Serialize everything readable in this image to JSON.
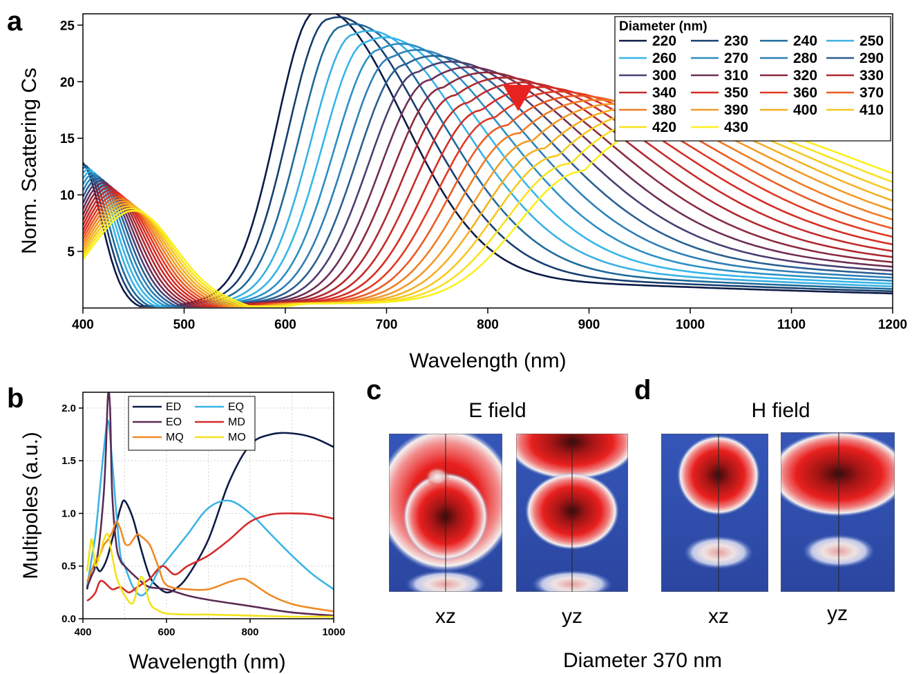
{
  "panel_labels": {
    "a": "a",
    "b": "b",
    "c": "c",
    "d": "d"
  },
  "chart_data": [
    {
      "type": "line",
      "panel": "a",
      "xlabel": "Wavelength (nm)",
      "ylabel": "Norm. Scattering Cs",
      "xlim": [
        400,
        1200
      ],
      "ylim": [
        0,
        26
      ],
      "xticks": [
        400,
        500,
        600,
        700,
        800,
        900,
        1000,
        1100,
        1200
      ],
      "yticks": [
        5,
        10,
        15,
        20,
        25
      ],
      "legend_title": "Diameter (nm)",
      "legend_position": "top-right",
      "series_names": [
        "220",
        "230",
        "240",
        "250",
        "260",
        "270",
        "280",
        "290",
        "300",
        "310",
        "320",
        "330",
        "340",
        "350",
        "360",
        "370",
        "380",
        "390",
        "400",
        "410",
        "420",
        "430"
      ],
      "series_colors": [
        "#0c1a45",
        "#173e6e",
        "#1e6a9a",
        "#39b0e2",
        "#35b6ea",
        "#2a8fc5",
        "#2c7fb8",
        "#2b5f91",
        "#4a3f72",
        "#6f2e55",
        "#8b2a3e",
        "#b0282f",
        "#c42b2b",
        "#d62c25",
        "#e23a22",
        "#ec5a22",
        "#f07d25",
        "#f39a25",
        "#f4b022",
        "#f6c81f",
        "#f8e21f",
        "#fbf01e"
      ],
      "series_summary": [
        {
          "name": "220",
          "peak_x": 630,
          "peak_y": 25.8,
          "ed_y": 12.5,
          "ed_x": 398,
          "valley_x": 470
        },
        {
          "name": "430",
          "peak_x": 895,
          "peak_y": 11.7,
          "ed_y": 8.2,
          "ed_x": 450,
          "valley_x": 580
        }
      ],
      "marker": {
        "shape": "triangle-down",
        "x": 830,
        "y": 18.5,
        "color": "#e8231f"
      }
    },
    {
      "type": "line",
      "panel": "b",
      "xlabel": "Wavelength (nm)",
      "ylabel": "Multipoles (a.u.)",
      "xlim": [
        400,
        1000
      ],
      "ylim": [
        0,
        2.15
      ],
      "xticks": [
        400,
        600,
        800,
        1000
      ],
      "yticks": [
        0.0,
        0.5,
        1.0,
        1.5,
        2.0
      ],
      "grid": true,
      "legend_position": "top-center",
      "series": [
        {
          "name": "ED",
          "color": "#0c1a45",
          "x": [
            410,
            420,
            430,
            440,
            450,
            460,
            470,
            480,
            490,
            500,
            520,
            540,
            560,
            580,
            600,
            620,
            650,
            700,
            750,
            800,
            850,
            900,
            950,
            1000
          ],
          "y": [
            0.28,
            0.45,
            0.5,
            0.45,
            0.5,
            0.6,
            0.75,
            0.9,
            1.05,
            1.12,
            0.95,
            0.65,
            0.4,
            0.3,
            0.25,
            0.28,
            0.4,
            0.75,
            1.3,
            1.65,
            1.75,
            1.76,
            1.72,
            1.63
          ]
        },
        {
          "name": "EQ",
          "color": "#3ab4e6",
          "x": [
            410,
            420,
            430,
            440,
            450,
            460,
            470,
            480,
            490,
            500,
            520,
            540,
            560,
            580,
            600,
            650,
            700,
            750,
            800,
            850,
            900,
            950,
            1000
          ],
          "y": [
            0.3,
            0.55,
            0.8,
            1.2,
            1.6,
            1.88,
            1.5,
            1.0,
            0.6,
            0.5,
            0.3,
            0.22,
            0.3,
            0.45,
            0.55,
            0.8,
            1.05,
            1.12,
            1.0,
            0.8,
            0.6,
            0.42,
            0.28
          ]
        },
        {
          "name": "EO",
          "color": "#5a2a52",
          "x": [
            410,
            420,
            430,
            440,
            450,
            455,
            460,
            465,
            470,
            480,
            490,
            500,
            520,
            540,
            560,
            600,
            650,
            700,
            800,
            900,
            1000
          ],
          "y": [
            0.3,
            0.4,
            0.5,
            0.75,
            1.2,
            1.6,
            2.12,
            2.0,
            1.2,
            0.7,
            0.55,
            0.5,
            0.42,
            0.35,
            0.3,
            0.28,
            0.22,
            0.18,
            0.12,
            0.06,
            0.03
          ]
        },
        {
          "name": "MD",
          "color": "#d42b2b",
          "x": [
            410,
            420,
            430,
            440,
            450,
            470,
            490,
            510,
            530,
            560,
            590,
            620,
            650,
            700,
            750,
            800,
            850,
            900,
            950,
            1000
          ],
          "y": [
            0.17,
            0.2,
            0.25,
            0.35,
            0.35,
            0.28,
            0.3,
            0.25,
            0.3,
            0.38,
            0.5,
            0.42,
            0.5,
            0.6,
            0.75,
            0.92,
            0.99,
            1.0,
            0.99,
            0.95
          ]
        },
        {
          "name": "MQ",
          "color": "#f08a25",
          "x": [
            410,
            420,
            430,
            440,
            450,
            460,
            470,
            480,
            490,
            500,
            510,
            520,
            530,
            540,
            560,
            580,
            600,
            650,
            700,
            750,
            780,
            800,
            850,
            900,
            950,
            1000
          ],
          "y": [
            0.35,
            0.45,
            0.55,
            0.6,
            0.7,
            0.75,
            0.82,
            0.92,
            0.85,
            0.72,
            0.7,
            0.75,
            0.8,
            0.78,
            0.7,
            0.5,
            0.32,
            0.28,
            0.28,
            0.35,
            0.38,
            0.35,
            0.22,
            0.14,
            0.1,
            0.07
          ]
        },
        {
          "name": "MO",
          "color": "#f4e21a",
          "x": [
            410,
            420,
            425,
            430,
            440,
            450,
            460,
            470,
            480,
            490,
            500,
            520,
            540,
            560,
            580,
            600,
            650,
            700,
            800,
            900,
            1000
          ],
          "y": [
            0.45,
            0.75,
            0.65,
            0.5,
            0.6,
            0.75,
            0.8,
            0.6,
            0.4,
            0.3,
            0.22,
            0.15,
            0.4,
            0.15,
            0.08,
            0.05,
            0.04,
            0.04,
            0.03,
            0.02,
            0.02
          ]
        }
      ]
    }
  ],
  "field_maps": {
    "c_title": "E field",
    "d_title": "H field",
    "planes": [
      "xz",
      "yz",
      "xz",
      "yz"
    ],
    "footer": "Diameter 370 nm",
    "colors": {
      "background": "#2f4fb0",
      "hot": "#e8201e",
      "core": "#3a0a0a",
      "halo": "#f2f2f2"
    }
  }
}
